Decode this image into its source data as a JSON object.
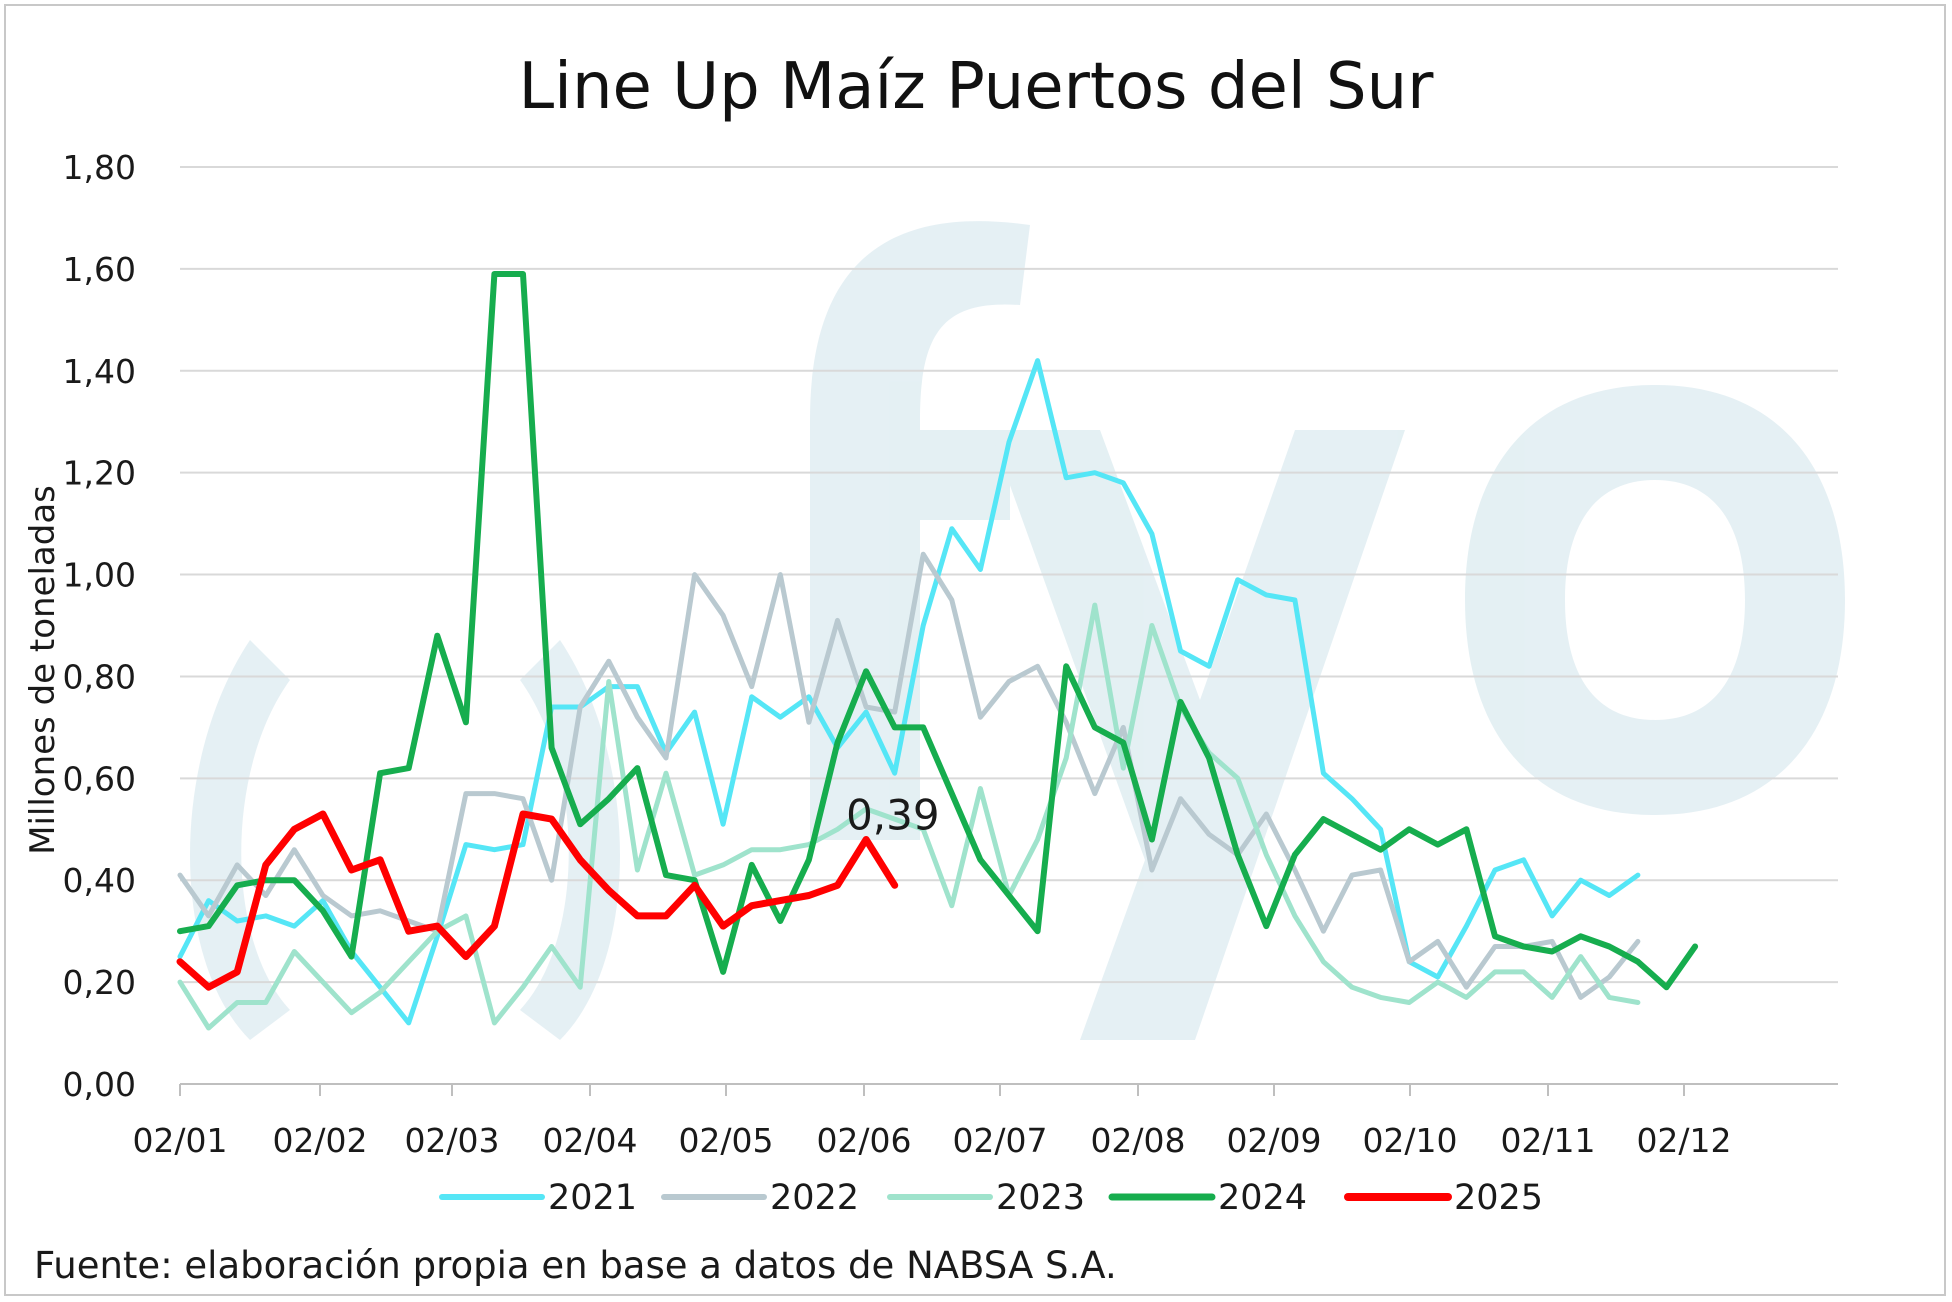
{
  "chart_data": {
    "type": "line",
    "title": "Line Up Maíz Puertos del Sur",
    "ylabel": "Millones de toneladas",
    "xlabel": "",
    "x_tick_labels": [
      "02/01",
      "02/02",
      "02/03",
      "02/04",
      "02/05",
      "02/06",
      "02/07",
      "02/08",
      "02/09",
      "02/10",
      "02/11",
      "02/12"
    ],
    "y_tick_labels": [
      "0,00",
      "0,20",
      "0,40",
      "0,60",
      "0,80",
      "1,00",
      "1,20",
      "1,40",
      "1,60",
      "1,80"
    ],
    "ylim": [
      0,
      1.8
    ],
    "grid": "horizontal",
    "legend_position": "bottom",
    "watermark": "fyo",
    "source": "Fuente: elaboración propia en base a datos de NABSA S.A.",
    "annotation": {
      "text": "0,39",
      "series": "2025"
    },
    "series": [
      {
        "name": "2021",
        "color": "#55e6f6",
        "width": 5,
        "values": [
          0.25,
          0.36,
          0.32,
          0.33,
          0.31,
          0.36,
          0.26,
          0.19,
          0.12,
          0.29,
          0.47,
          0.46,
          0.47,
          0.74,
          0.74,
          0.78,
          0.78,
          0.65,
          0.73,
          0.51,
          0.76,
          0.72,
          0.76,
          0.66,
          0.73,
          0.61,
          0.9,
          1.09,
          1.01,
          1.26,
          1.42,
          1.19,
          1.2,
          1.18,
          1.08,
          0.85,
          0.82,
          0.99,
          0.96,
          0.95,
          0.61,
          0.56,
          0.5,
          0.24,
          0.21,
          0.31,
          0.42,
          0.44,
          0.33,
          0.4,
          0.37,
          0.41
        ]
      },
      {
        "name": "2022",
        "color": "#b9c9d0",
        "width": 5,
        "values": [
          0.41,
          0.33,
          0.43,
          0.37,
          0.46,
          0.37,
          0.33,
          0.34,
          0.32,
          0.3,
          0.57,
          0.57,
          0.56,
          0.4,
          0.74,
          0.83,
          0.72,
          0.64,
          1.0,
          0.92,
          0.78,
          1.0,
          0.71,
          0.91,
          0.74,
          0.73,
          1.04,
          0.95,
          0.72,
          0.79,
          0.82,
          0.71,
          0.57,
          0.7,
          0.42,
          0.56,
          0.49,
          0.45,
          0.53,
          0.42,
          0.3,
          0.41,
          0.42,
          0.24,
          0.28,
          0.19,
          0.27,
          0.27,
          0.28,
          0.17,
          0.21,
          0.28
        ]
      },
      {
        "name": "2023",
        "color": "#9fe3cc",
        "width": 5,
        "values": [
          0.2,
          0.11,
          0.16,
          0.16,
          0.26,
          0.2,
          0.14,
          0.18,
          0.24,
          0.3,
          0.33,
          0.12,
          0.19,
          0.27,
          0.19,
          0.79,
          0.42,
          0.61,
          0.41,
          0.43,
          0.46,
          0.46,
          0.47,
          0.5,
          0.54,
          0.52,
          0.5,
          0.35,
          0.58,
          0.37,
          0.48,
          0.64,
          0.94,
          0.62,
          0.9,
          0.74,
          0.65,
          0.6,
          0.45,
          0.33,
          0.24,
          0.19,
          0.17,
          0.16,
          0.2,
          0.17,
          0.22,
          0.22,
          0.17,
          0.25,
          0.17,
          0.16
        ]
      },
      {
        "name": "2024",
        "color": "#16ad4e",
        "width": 6,
        "values": [
          0.3,
          0.31,
          0.39,
          0.4,
          0.4,
          0.34,
          0.25,
          0.61,
          0.62,
          0.88,
          0.71,
          1.59,
          1.59,
          0.66,
          0.51,
          0.56,
          0.62,
          0.41,
          0.4,
          0.22,
          0.43,
          0.32,
          0.44,
          0.67,
          0.81,
          0.7,
          0.7,
          0.57,
          0.44,
          0.37,
          0.3,
          0.82,
          0.7,
          0.67,
          0.48,
          0.75,
          0.64,
          0.45,
          0.31,
          0.45,
          0.52,
          0.49,
          0.46,
          0.5,
          0.47,
          0.5,
          0.29,
          0.27,
          0.26,
          0.29,
          0.27,
          0.24,
          0.19,
          0.27
        ]
      },
      {
        "name": "2025",
        "color": "#ff0000",
        "width": 7,
        "values": [
          0.24,
          0.19,
          0.22,
          0.43,
          0.5,
          0.53,
          0.42,
          0.44,
          0.3,
          0.31,
          0.25,
          0.31,
          0.53,
          0.52,
          0.44,
          0.38,
          0.33,
          0.33,
          0.39,
          0.31,
          0.35,
          0.36,
          0.37,
          0.39,
          0.48,
          0.39
        ]
      }
    ]
  }
}
